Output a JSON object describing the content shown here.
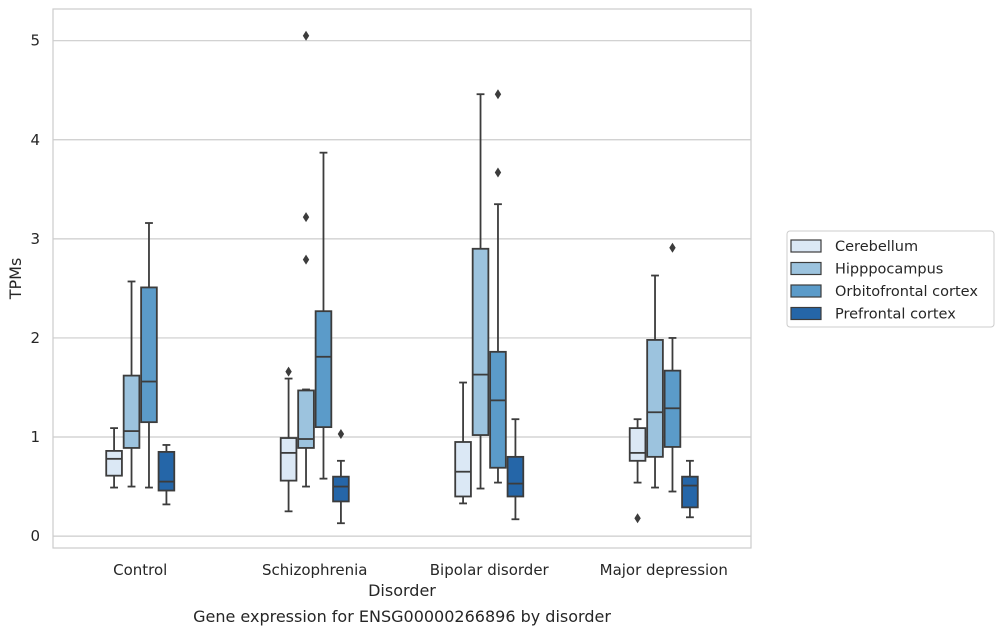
{
  "chart_data": {
    "type": "box",
    "xlabel": "Disorder",
    "ylabel": "TPMs",
    "caption": "Gene expression for ENSG00000266896 by disorder",
    "ylim": [
      -0.12,
      5.32
    ],
    "yticks": [
      0,
      1,
      2,
      3,
      4,
      5
    ],
    "grid": "horizontal",
    "legend_position": "right",
    "categories": [
      "Control",
      "Schizophrenia",
      "Bipolar disorder",
      "Major depression"
    ],
    "series": [
      {
        "name": "Cerebellum",
        "color": "#dbe8f5",
        "boxes": [
          {
            "whislo": 0.49,
            "q1": 0.61,
            "med": 0.78,
            "q3": 0.86,
            "whishi": 1.09,
            "fliers": []
          },
          {
            "whislo": 0.25,
            "q1": 0.56,
            "med": 0.84,
            "q3": 0.99,
            "whishi": 1.59,
            "fliers": [
              1.66
            ]
          },
          {
            "whislo": 0.33,
            "q1": 0.4,
            "med": 0.65,
            "q3": 0.95,
            "whishi": 1.55,
            "fliers": []
          },
          {
            "whislo": 0.54,
            "q1": 0.76,
            "med": 0.84,
            "q3": 1.09,
            "whishi": 1.18,
            "fliers": [
              0.18
            ]
          }
        ]
      },
      {
        "name": "Hipppocampus",
        "color": "#9cc3de",
        "boxes": [
          {
            "whislo": 0.5,
            "q1": 0.89,
            "med": 1.06,
            "q3": 1.62,
            "whishi": 2.57,
            "fliers": []
          },
          {
            "whislo": 0.5,
            "q1": 0.89,
            "med": 0.98,
            "q3": 1.47,
            "whishi": 1.48,
            "fliers": [
              2.79,
              3.22,
              5.05
            ]
          },
          {
            "whislo": 0.48,
            "q1": 1.02,
            "med": 1.63,
            "q3": 2.9,
            "whishi": 4.46,
            "fliers": []
          },
          {
            "whislo": 0.49,
            "q1": 0.8,
            "med": 1.25,
            "q3": 1.98,
            "whishi": 2.63,
            "fliers": []
          }
        ]
      },
      {
        "name": "Orbitofrontal cortex",
        "color": "#5b9bc9",
        "boxes": [
          {
            "whislo": 0.49,
            "q1": 1.15,
            "med": 1.56,
            "q3": 2.51,
            "whishi": 3.16,
            "fliers": []
          },
          {
            "whislo": 0.58,
            "q1": 1.1,
            "med": 1.81,
            "q3": 2.27,
            "whishi": 3.87,
            "fliers": []
          },
          {
            "whislo": 0.54,
            "q1": 0.69,
            "med": 1.37,
            "q3": 1.86,
            "whishi": 3.35,
            "fliers": [
              3.67,
              4.46
            ]
          },
          {
            "whislo": 0.45,
            "q1": 0.9,
            "med": 1.29,
            "q3": 1.67,
            "whishi": 2.0,
            "fliers": [
              2.91
            ]
          }
        ]
      },
      {
        "name": "Prefrontal cortex",
        "color": "#2566a8",
        "boxes": [
          {
            "whislo": 0.32,
            "q1": 0.46,
            "med": 0.55,
            "q3": 0.85,
            "whishi": 0.92,
            "fliers": []
          },
          {
            "whislo": 0.13,
            "q1": 0.35,
            "med": 0.5,
            "q3": 0.6,
            "whishi": 0.76,
            "fliers": [
              1.03
            ]
          },
          {
            "whislo": 0.17,
            "q1": 0.4,
            "med": 0.53,
            "q3": 0.8,
            "whishi": 1.18,
            "fliers": []
          },
          {
            "whislo": 0.19,
            "q1": 0.29,
            "med": 0.51,
            "q3": 0.6,
            "whishi": 0.76,
            "fliers": []
          }
        ]
      }
    ]
  }
}
